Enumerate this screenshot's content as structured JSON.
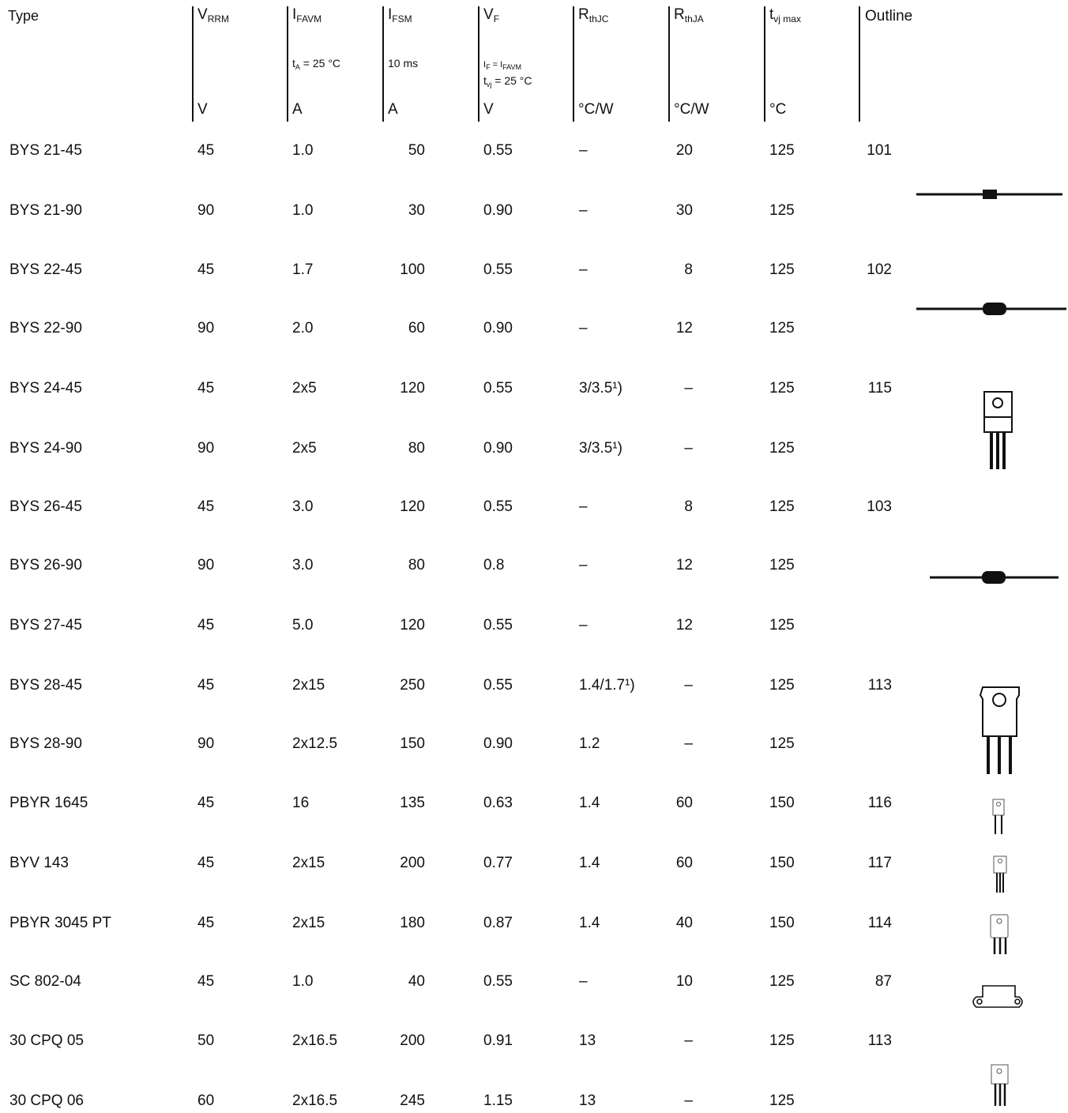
{
  "header": {
    "type": "Type",
    "outline": "Outline",
    "columns": [
      {
        "sym": "V",
        "sub": "RRM",
        "cond1": "",
        "cond2": "",
        "unit": "V"
      },
      {
        "sym": "I",
        "sub": "FAVM",
        "cond1": "t",
        "cond1sub": "A",
        "cond1rest": " = 25 °C",
        "unit": "A"
      },
      {
        "sym": "I",
        "sub": "FSM",
        "cond1": "10 ms",
        "unit": "A"
      },
      {
        "sym": "V",
        "sub": "F",
        "cond1": "I",
        "cond1sub": "F",
        "cond1rest": " = I",
        "cond1sub2": "FAVM",
        "cond2": "t",
        "cond2sub": "vj",
        "cond2rest": " = 25 °C",
        "unit": "V"
      },
      {
        "sym": "R",
        "sub": "thJC",
        "unit": "°C/W"
      },
      {
        "sym": "R",
        "sub": "thJA",
        "unit": "°C/W"
      },
      {
        "sym": "t",
        "sub": "vj max",
        "unit": "°C"
      }
    ]
  },
  "rows": [
    {
      "type": "BYS 21-45",
      "vrrm": "45",
      "ifavm": "1.0",
      "ifsm": "50",
      "vf": "0.55",
      "rthjc": "–",
      "rthja": "20",
      "tvj": "125",
      "outline": "101"
    },
    {
      "type": "BYS 21-90",
      "vrrm": "90",
      "ifavm": "1.0",
      "ifsm": "30",
      "vf": "0.90",
      "rthjc": "–",
      "rthja": "30",
      "tvj": "125",
      "outline": ""
    },
    {
      "type": "BYS 22-45",
      "vrrm": "45",
      "ifavm": "1.7",
      "ifsm": "100",
      "vf": "0.55",
      "rthjc": "–",
      "rthja": "8",
      "tvj": "125",
      "outline": "102"
    },
    {
      "type": "BYS 22-90",
      "vrrm": "90",
      "ifavm": "2.0",
      "ifsm": "60",
      "vf": "0.90",
      "rthjc": "–",
      "rthja": "12",
      "tvj": "125",
      "outline": ""
    },
    {
      "type": "BYS 24-45",
      "vrrm": "45",
      "ifavm": "2x5",
      "ifsm": "120",
      "vf": "0.55",
      "rthjc": "3/3.5¹)",
      "rthja": "–",
      "tvj": "125",
      "outline": "115"
    },
    {
      "type": "BYS 24-90",
      "vrrm": "90",
      "ifavm": "2x5",
      "ifsm": "80",
      "vf": "0.90",
      "rthjc": "3/3.5¹)",
      "rthja": "–",
      "tvj": "125",
      "outline": ""
    },
    {
      "type": "BYS 26-45",
      "vrrm": "45",
      "ifavm": "3.0",
      "ifsm": "120",
      "vf": "0.55",
      "rthjc": "–",
      "rthja": "8",
      "tvj": "125",
      "outline": "103"
    },
    {
      "type": "BYS 26-90",
      "vrrm": "90",
      "ifavm": "3.0",
      "ifsm": "80",
      "vf": "0.8",
      "rthjc": "–",
      "rthja": "12",
      "tvj": "125",
      "outline": ""
    },
    {
      "type": "BYS 27-45",
      "vrrm": "45",
      "ifavm": "5.0",
      "ifsm": "120",
      "vf": "0.55",
      "rthjc": "–",
      "rthja": "12",
      "tvj": "125",
      "outline": ""
    },
    {
      "type": "BYS 28-45",
      "vrrm": "45",
      "ifavm": "2x15",
      "ifsm": "250",
      "vf": "0.55",
      "rthjc": "1.4/1.7¹)",
      "rthja": "–",
      "tvj": "125",
      "outline": "113"
    },
    {
      "type": "BYS 28-90",
      "vrrm": "90",
      "ifavm": "2x12.5",
      "ifsm": "150",
      "vf": "0.90",
      "rthjc": "1.2",
      "rthja": "–",
      "tvj": "125",
      "outline": ""
    },
    {
      "type": "PBYR 1645",
      "vrrm": "45",
      "ifavm": "16",
      "ifsm": "135",
      "vf": "0.63",
      "rthjc": "1.4",
      "rthja": "60",
      "tvj": "150",
      "outline": "116"
    },
    {
      "type": "BYV 143",
      "vrrm": "45",
      "ifavm": "2x15",
      "ifsm": "200",
      "vf": "0.77",
      "rthjc": "1.4",
      "rthja": "60",
      "tvj": "150",
      "outline": "117"
    },
    {
      "type": "PBYR 3045 PT",
      "vrrm": "45",
      "ifavm": "2x15",
      "ifsm": "180",
      "vf": "0.87",
      "rthjc": "1.4",
      "rthja": "40",
      "tvj": "150",
      "outline": "114"
    },
    {
      "type": "SC 802-04",
      "vrrm": "45",
      "ifavm": "1.0",
      "ifsm": "40",
      "vf": "0.55",
      "rthjc": "–",
      "rthja": "10",
      "tvj": "125",
      "outline": "87"
    },
    {
      "type": "30 CPQ 05",
      "vrrm": "50",
      "ifavm": "2x16.5",
      "ifsm": "200",
      "vf": "0.91",
      "rthjc": "13",
      "rthja": "–",
      "tvj": "125",
      "outline": "113"
    },
    {
      "type": "30 CPQ 06",
      "vrrm": "60",
      "ifavm": "2x16.5",
      "ifsm": "245",
      "vf": "1.15",
      "rthjc": "13",
      "rthja": "–",
      "tvj": "125",
      "outline": ""
    }
  ],
  "package_icons": [
    {
      "kind": "axial-small-diode-icon"
    },
    {
      "kind": "axial-medium-diode-icon"
    },
    {
      "kind": "to220-3lead-icon"
    },
    {
      "kind": "axial-medium-diode-icon"
    },
    {
      "kind": "to247-3lead-icon"
    },
    {
      "kind": "to220-2lead-small-icon"
    },
    {
      "kind": "to220-3lead-small-icon"
    },
    {
      "kind": "to218-3lead-small-icon"
    },
    {
      "kind": "flange-mount-icon"
    },
    {
      "kind": "to220-3lead-small-icon"
    }
  ]
}
